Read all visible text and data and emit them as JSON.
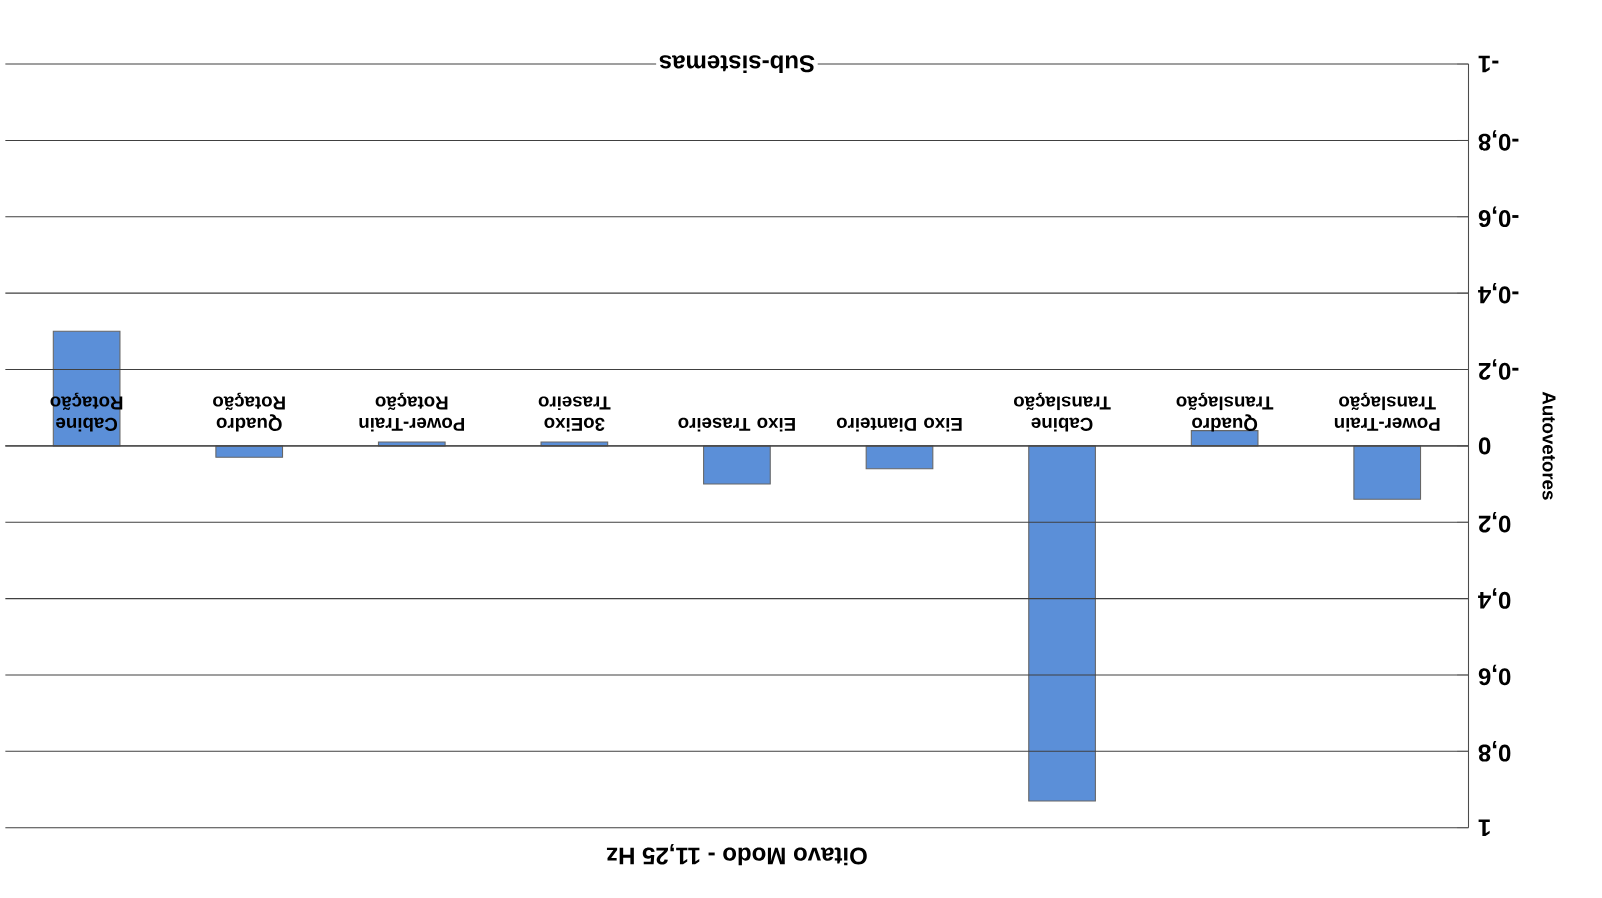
{
  "chart_data": {
    "type": "bar",
    "title": "Oitavo Modo - 11,25 Hz",
    "xlabel": "Sub-sistemas",
    "ylabel": "Autovetores",
    "categories": [
      "Cabine Rotação",
      "Quadro Rotação",
      "Power-Train Rotação",
      "3oEixo Traseiro",
      "Eixo Traseiro",
      "Eixo Dianteiro",
      "Cabine Translação",
      "Quadro Translação",
      "Power-Train Translação"
    ],
    "values": [
      -0.3,
      0.03,
      -0.01,
      -0.01,
      0.1,
      0.06,
      0.93,
      -0.04,
      0.14
    ],
    "color": "#5b8fd8",
    "ylim": [
      1,
      -1
    ],
    "yticks": [
      -1,
      {
        "value": -0.8,
        "label": "-0,8"
      },
      {
        "value": -0.6,
        "label": "-0,6"
      },
      {
        "value": -0.4,
        "label": "-0,4"
      },
      {
        "value": -0.2,
        "label": "-0,2"
      },
      0,
      {
        "value": 0.2,
        "label": "0,2"
      },
      {
        "value": 0.4,
        "label": "0,4"
      },
      {
        "value": 0.6,
        "label": "0,6"
      },
      {
        "value": 0.8,
        "label": "0,8"
      },
      1
    ],
    "grid": "y"
  }
}
